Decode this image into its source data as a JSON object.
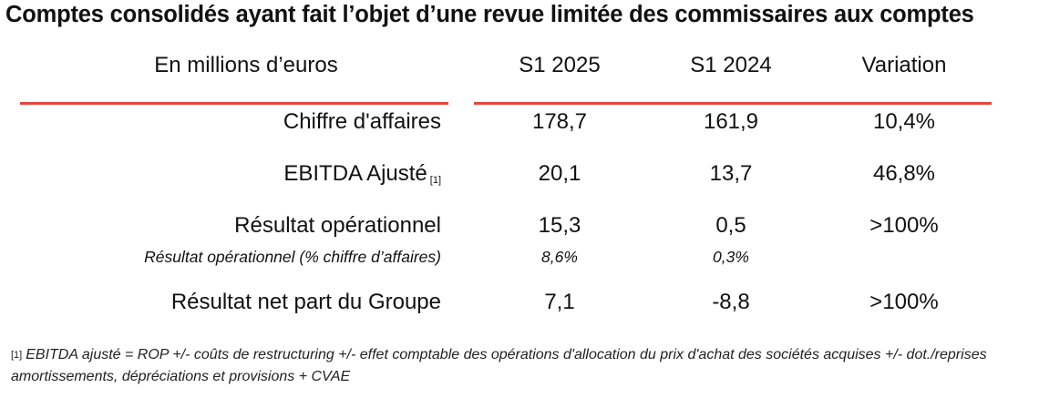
{
  "title": "Comptes consolidés ayant fait l’objet d’une revue limitée des commissaires aux comptes",
  "header": {
    "label": "En millions d’euros",
    "col1": "S1 2025",
    "col2": "S1 2024",
    "col3": "Variation"
  },
  "rows": [
    {
      "label": "Chiffre d'affaires",
      "note": "",
      "s1_2025": "178,7",
      "s1_2024": "161,9",
      "variation": "10,4%"
    },
    {
      "label": "EBITDA Ajusté",
      "note": "[1]",
      "s1_2025": "20,1",
      "s1_2024": "13,7",
      "variation": "46,8%"
    },
    {
      "label": "Résultat opérationnel",
      "note": "",
      "s1_2025": "15,3",
      "s1_2024": "0,5",
      "variation": ">100%"
    },
    {
      "label": "Résultat opérationnel (% chiffre d’affaires)",
      "note": "",
      "s1_2025": "8,6%",
      "s1_2024": "0,3%",
      "variation": ""
    },
    {
      "label": "Résultat net part du Groupe",
      "note": "",
      "s1_2025": "7,1",
      "s1_2024": "-8,8",
      "variation": ">100%"
    }
  ],
  "footnote": {
    "marker": "[1]",
    "text": "EBITDA ajusté = ROP +/- coûts de restructuring +/- effet comptable des opérations d'allocation du prix d'achat des sociétés acquises +/- dot./reprises amortissements, dépréciations et provisions + CVAE"
  },
  "colors": {
    "rule": "#e2473b",
    "text": "#111111"
  }
}
